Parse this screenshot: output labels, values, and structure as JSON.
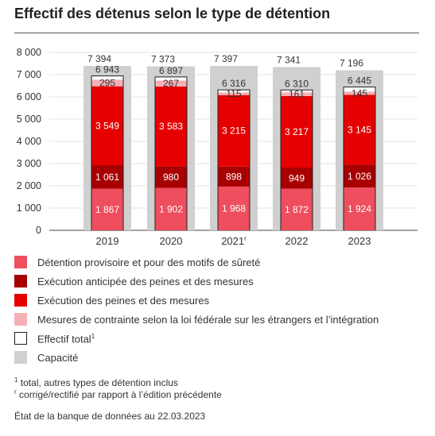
{
  "title": "Effectif des détenus selon le type de détention",
  "chart_data": {
    "type": "bar",
    "stacked": true,
    "categories": [
      "2019",
      "2020",
      "2021",
      "2022",
      "2023"
    ],
    "category_marks": [
      "",
      "",
      "r",
      "",
      ""
    ],
    "ylim": [
      0,
      8000
    ],
    "yticks": [
      0,
      1000,
      2000,
      3000,
      4000,
      5000,
      6000,
      7000,
      8000
    ],
    "ytick_labels": [
      "0",
      "1 000",
      "2 000",
      "3 000",
      "4 000",
      "5 000",
      "6 000",
      "7 000",
      "8 000"
    ],
    "grid": true,
    "series": [
      {
        "name": "Détention provisoire et pour des motifs de sûreté",
        "color": "#ee4e5e",
        "values": [
          1867,
          1902,
          1968,
          1872,
          1924
        ],
        "labels": [
          "1 867",
          "1 902",
          "1 968",
          "1 872",
          "1 924"
        ]
      },
      {
        "name": "Exécution anticipée des peines et des mesures",
        "color": "#a80000",
        "values": [
          1061,
          980,
          898,
          949,
          1026
        ],
        "labels": [
          "1 061",
          "980",
          "898",
          "949",
          "1 026"
        ]
      },
      {
        "name": "Exécution des peines et des mesures",
        "color": "#e60000",
        "values": [
          3549,
          3583,
          3215,
          3217,
          3145
        ],
        "labels": [
          "3 549",
          "3 583",
          "3 215",
          "3 217",
          "3 145"
        ]
      },
      {
        "name": "Mesures de contrainte selon la loi fédérale sur les étrangers et l’intégration",
        "color": "#f5b0b6",
        "values": [
          295,
          267,
          115,
          161,
          145
        ],
        "labels": [
          "295",
          "267",
          "115",
          "161",
          "145"
        ]
      }
    ],
    "total": {
      "name": "Effectif total",
      "mark": "1",
      "values": [
        6943,
        6897,
        6316,
        6310,
        6445
      ],
      "labels": [
        "6 943",
        "6 897",
        "6 316",
        "6 310",
        "6 445"
      ]
    },
    "capacity": {
      "name": "Capacité",
      "color": "#d0d0d0",
      "values": [
        7394,
        7373,
        7397,
        7341,
        7196
      ],
      "labels": [
        "7 394",
        "7 373",
        "7 397",
        "7 341",
        "7 196"
      ]
    },
    "legend_position": "bottom"
  },
  "notes": {
    "note1_mark": "1",
    "note1": "total, autres types de détention inclus",
    "note2_mark": "r",
    "note2": "corrigé/rectifié par rapport à l’édition précédente",
    "source": "État de la banque de données au 22.03.2023"
  }
}
